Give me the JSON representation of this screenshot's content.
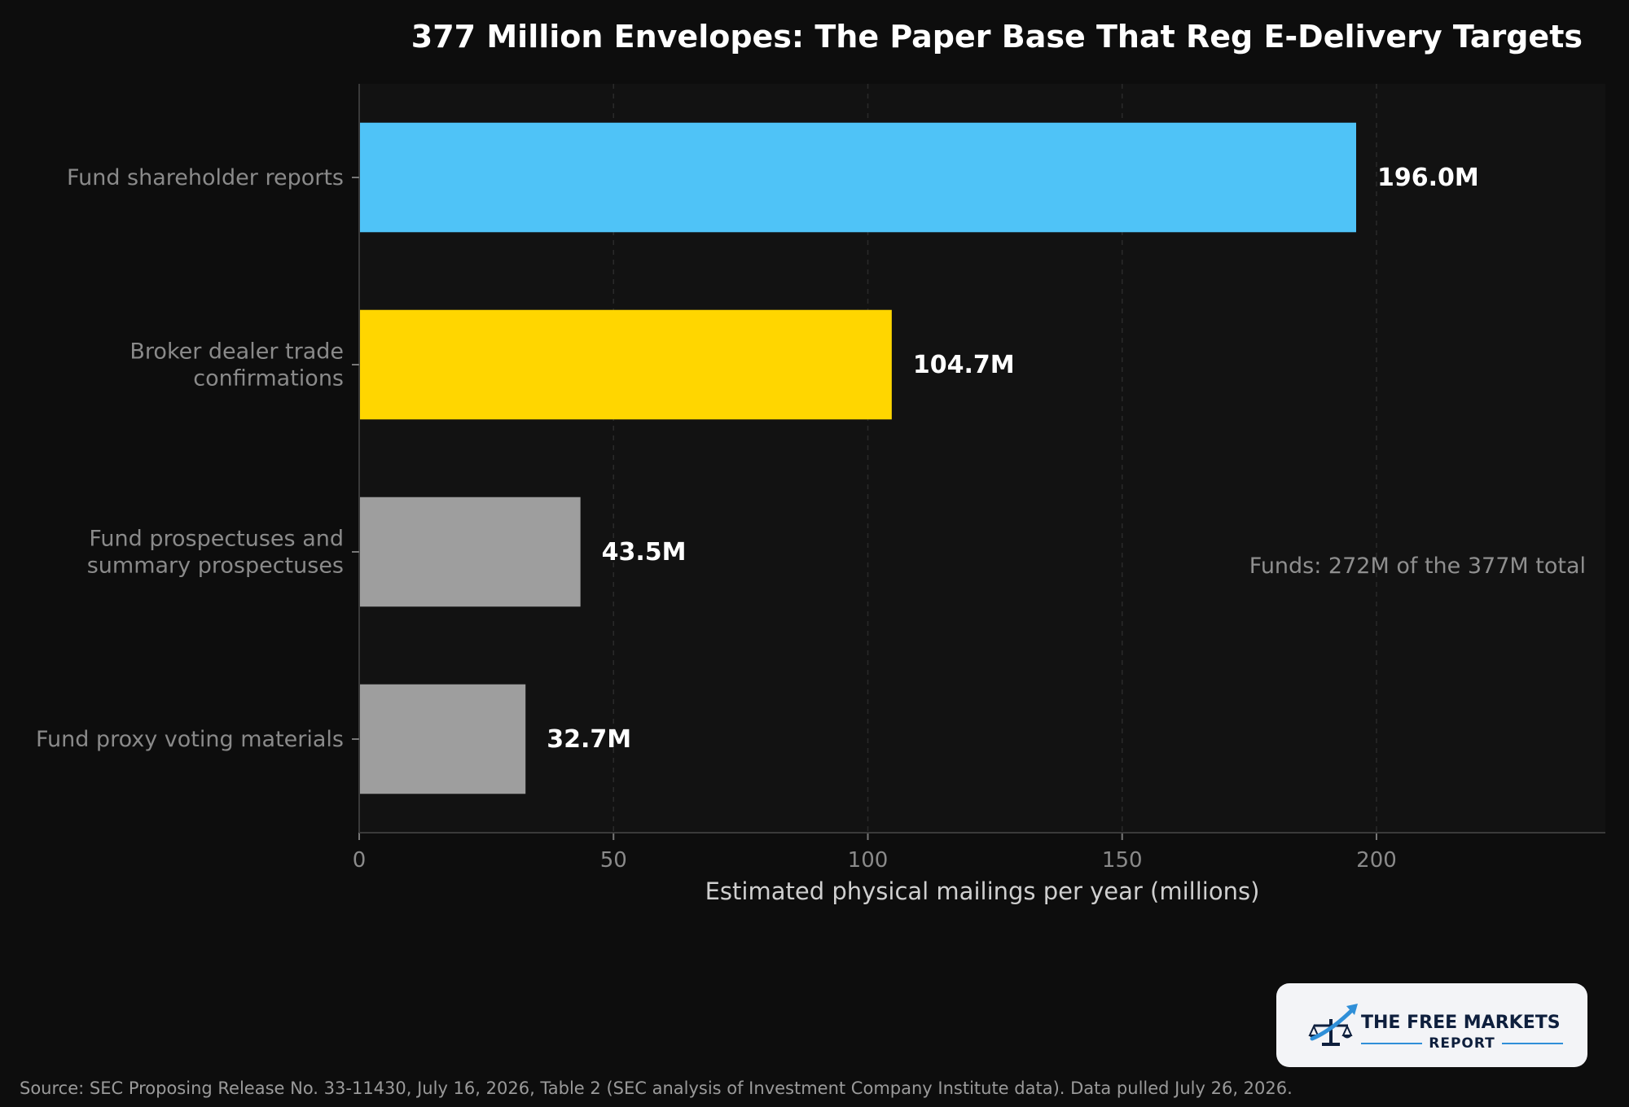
{
  "chart_data": {
    "type": "bar",
    "orientation": "horizontal",
    "title": "377 Million Envelopes: The Paper Base That Reg E-Delivery Targets",
    "xlabel": "Estimated physical mailings per year (millions)",
    "ylabel": "",
    "xlim": [
      0,
      245
    ],
    "x_ticks": [
      0,
      50,
      100,
      150,
      200
    ],
    "grid": "vertical dashed",
    "categories": [
      [
        "Fund shareholder reports"
      ],
      [
        "Broker dealer trade",
        "confirmations"
      ],
      [
        "Fund prospectuses and",
        "summary prospectuses"
      ],
      [
        "Fund proxy voting materials"
      ]
    ],
    "values": [
      196.0,
      104.7,
      43.5,
      32.7
    ],
    "value_labels": [
      "196.0M",
      "104.7M",
      "43.5M",
      "32.7M"
    ],
    "bar_colors": [
      "#4fc3f7",
      "#ffd600",
      "#9e9e9e",
      "#9e9e9e"
    ],
    "annotation": "Funds: 272M of the 377M total"
  },
  "source": "Source: SEC Proposing Release No. 33-11430, July 16, 2026, Table 2 (SEC analysis of Investment Company Institute data). Data pulled July 26, 2026.",
  "logo": {
    "line1": "THE FREE MARKETS",
    "line2": "REPORT"
  },
  "colors": {
    "background": "#0d0d0d",
    "plot_background": "#121212"
  }
}
